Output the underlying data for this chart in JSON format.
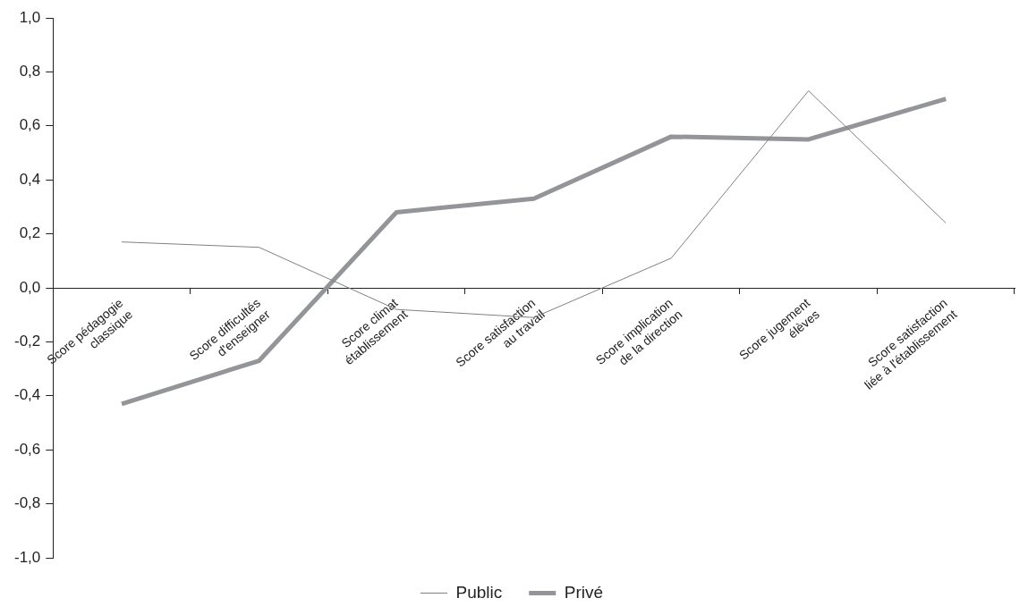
{
  "chart_data": {
    "type": "line",
    "categories": [
      "Score pédagogie classique",
      "Score difficultés d'enseigner",
      "Score climat établissement",
      "Score satisfaction au travail",
      "Score implication de la direction",
      "Score jugement élèves",
      "Score satisfaction liée à l'établissement"
    ],
    "series": [
      {
        "name": "Public",
        "color": "#808080",
        "values": [
          0.17,
          0.15,
          -0.08,
          -0.11,
          0.11,
          0.73,
          0.24
        ]
      },
      {
        "name": "Privé",
        "color": "#939598",
        "values": [
          -0.43,
          -0.27,
          0.28,
          0.33,
          0.56,
          0.55,
          0.7
        ]
      }
    ],
    "ylim": [
      -1.0,
      1.0
    ],
    "yticks": [
      {
        "value": -1.0,
        "label": "-1,0"
      },
      {
        "value": -0.8,
        "label": "-0,8"
      },
      {
        "value": -0.6,
        "label": "-0,6"
      },
      {
        "value": -0.4,
        "label": "-0,4"
      },
      {
        "value": -0.2,
        "label": "-0,2"
      },
      {
        "value": 0,
        "label": "0,0"
      },
      {
        "value": 0.2,
        "label": "0,2"
      },
      {
        "value": 0.4,
        "label": "0,4"
      },
      {
        "value": 0.6,
        "label": "0,6"
      },
      {
        "value": 0.8,
        "label": "0,8"
      },
      {
        "value": 1.0,
        "label": "1,0"
      }
    ],
    "grid": false,
    "legend": "bottom",
    "marker": "none",
    "line_style": "solid"
  }
}
